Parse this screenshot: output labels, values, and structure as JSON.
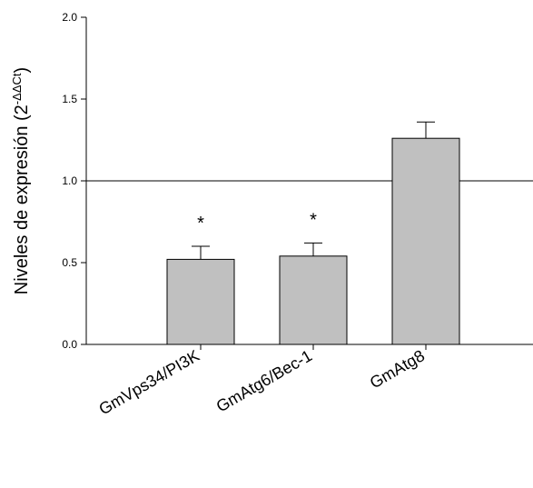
{
  "chart_data": {
    "type": "bar",
    "title": "",
    "xlabel": "",
    "ylabel_main": "Niveles de expresión (2",
    "ylabel_sup": "-ΔΔCt",
    "ylabel_close": ")",
    "ylim": [
      0.0,
      2.0
    ],
    "yticks": [
      "0.0",
      "0.5",
      "1.0",
      "1.5",
      "2.0"
    ],
    "ytick_values": [
      0.0,
      0.5,
      1.0,
      1.5,
      2.0
    ],
    "categories": [
      "GmVps34/PI3K",
      "GmAtg6/Bec-1",
      "GmAtg8"
    ],
    "values": [
      0.52,
      0.54,
      1.26
    ],
    "errors": [
      0.08,
      0.08,
      0.1
    ],
    "annotations": [
      "*",
      "*",
      ""
    ],
    "reference_line": 1.0,
    "grid": false,
    "bar_color": "#c0c0c0"
  }
}
